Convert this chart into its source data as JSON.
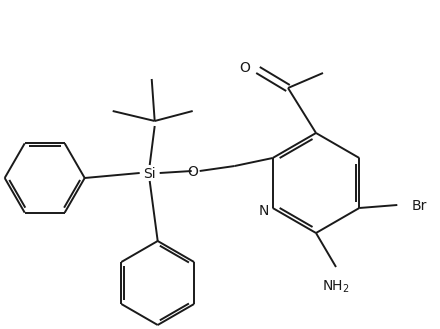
{
  "background_color": "#ffffff",
  "line_color": "#1a1a1a",
  "line_width": 1.4,
  "figsize": [
    4.4,
    3.29
  ],
  "dpi": 100,
  "xlim": [
    0,
    440
  ],
  "ylim": [
    0,
    329
  ]
}
